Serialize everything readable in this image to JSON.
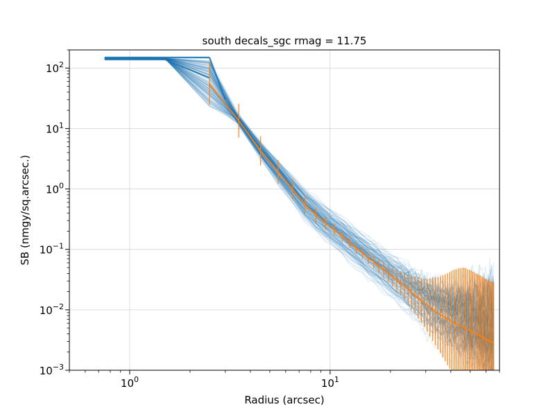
{
  "chart_data": {
    "type": "line",
    "title": "south decals_sgc rmag = 11.75",
    "xlabel": "Radius (arcsec)",
    "ylabel": "SB (nmgy/sq.arcsec.)",
    "xscale": "log",
    "yscale": "log",
    "xlim": [
      0.5,
      70
    ],
    "ylim": [
      0.001,
      200
    ],
    "grid": true,
    "x_ticks": [
      {
        "value": 1,
        "base": "10",
        "exp": "0"
      },
      {
        "value": 10,
        "base": "10",
        "exp": "1"
      }
    ],
    "y_ticks": [
      {
        "value": 0.001,
        "base": "10",
        "exp": "−3"
      },
      {
        "value": 0.01,
        "base": "10",
        "exp": "−2"
      },
      {
        "value": 0.1,
        "base": "10",
        "exp": "−1"
      },
      {
        "value": 1,
        "base": "10",
        "exp": "0"
      },
      {
        "value": 10,
        "base": "10",
        "exp": "1"
      },
      {
        "value": 100,
        "base": "10",
        "exp": "2"
      }
    ],
    "colors": {
      "individual_profiles": "#1f77b4",
      "median_profile": "#ff7f0e",
      "grid": "#b0b0b0"
    },
    "individual_profiles": {
      "count": 150,
      "representative_x": [
        0.75,
        1.5,
        2.5
      ],
      "representative_y": [
        145,
        145,
        145
      ]
    },
    "median_profile": {
      "x": [
        2.5,
        3.5,
        4.5,
        5.5,
        6.5,
        7.5,
        8.5,
        9.5,
        10.5,
        11.5,
        12.5,
        13.5,
        14.5,
        15.5,
        16.5,
        17.5,
        18.5,
        19.5,
        20.5,
        21.5,
        22.5,
        23.5,
        24.5,
        25.5,
        26.5,
        27.5,
        28.5,
        29.5,
        30.5,
        31.5,
        32.5,
        33.5,
        34.5,
        35.5,
        36.5,
        37.5,
        38.5,
        39.5,
        40.5,
        41.5,
        42.5,
        43.5,
        44.5,
        45.5,
        46.5,
        47.5,
        48.5,
        49.5,
        50.5,
        51.5,
        52.5,
        53.5,
        54.5,
        55.5,
        56.5,
        57.5,
        58.5,
        59.5,
        60.5,
        61.5,
        62.5,
        63.5,
        64.5,
        65.5
      ],
      "y": [
        55,
        13.5,
        4.3,
        1.9,
        0.98,
        0.55,
        0.37,
        0.27,
        0.21,
        0.165,
        0.13,
        0.105,
        0.087,
        0.072,
        0.062,
        0.053,
        0.046,
        0.04,
        0.035,
        0.031,
        0.0275,
        0.0245,
        0.0218,
        0.0195,
        0.0175,
        0.0158,
        0.0143,
        0.013,
        0.0119,
        0.0109,
        0.0101,
        0.0094,
        0.0088,
        0.0083,
        0.0078,
        0.0074,
        0.007,
        0.0067,
        0.0064,
        0.0061,
        0.0059,
        0.0057,
        0.0055,
        0.0053,
        0.0051,
        0.0049,
        0.0047,
        0.0046,
        0.0045,
        0.0043,
        0.0042,
        0.004,
        0.0039,
        0.0038,
        0.0037,
        0.0035,
        0.0034,
        0.0033,
        0.0032,
        0.0031,
        0.003,
        0.003,
        0.0029,
        0.0029
      ],
      "yerr": [
        0.35,
        0.28,
        0.24,
        0.2,
        0.17,
        0.14,
        0.12,
        0.11,
        0.1,
        0.09,
        0.09,
        0.09,
        0.1,
        0.1,
        0.11,
        0.12,
        0.13,
        0.14,
        0.16,
        0.18,
        0.2,
        0.22,
        0.25,
        0.28,
        0.31,
        0.34,
        0.37,
        0.4,
        0.44,
        0.48,
        0.52,
        0.56,
        0.6,
        0.64,
        0.68,
        0.72,
        0.76,
        0.8,
        0.84,
        0.88,
        0.9,
        0.93,
        0.95,
        0.97,
        0.99,
        1.0,
        1.0,
        1.0,
        1.0,
        1.0,
        1.0,
        1.0,
        1.0,
        1.0,
        1.0,
        1.0,
        1.0,
        1.0,
        1.0,
        1.0,
        1.0,
        1.0,
        1.0,
        1.0
      ]
    }
  }
}
